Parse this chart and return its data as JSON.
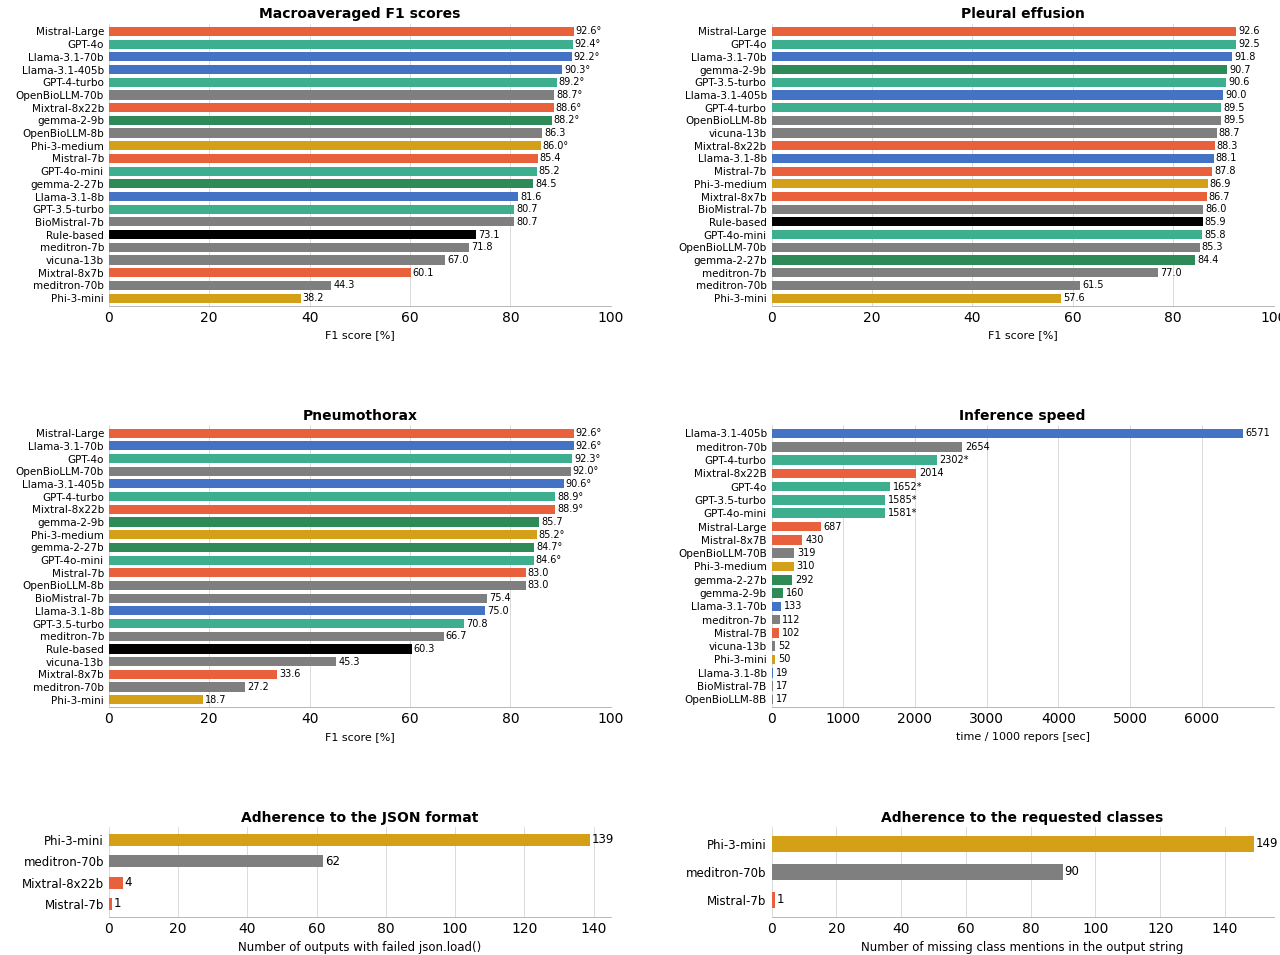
{
  "macro_f1": {
    "title": "Macroaveraged F1 scores",
    "xlabel": "F1 score [%]",
    "xlim": [
      0,
      100
    ],
    "labels": [
      "Mistral-Large",
      "GPT-4o",
      "Llama-3.1-70b",
      "Llama-3.1-405b",
      "GPT-4-turbo",
      "OpenBioLLM-70b",
      "Mixtral-8x22b",
      "gemma-2-9b",
      "OpenBioLLM-8b",
      "Phi-3-medium",
      "Mistral-7b",
      "GPT-4o-mini",
      "gemma-2-27b",
      "Llama-3.1-8b",
      "GPT-3.5-turbo",
      "BioMistral-7b",
      "Rule-based",
      "meditron-7b",
      "vicuna-13b",
      "Mixtral-8x7b",
      "meditron-70b",
      "Phi-3-mini"
    ],
    "values": [
      92.6,
      92.4,
      92.2,
      90.3,
      89.2,
      88.7,
      88.6,
      88.2,
      86.3,
      86.0,
      85.4,
      85.2,
      84.5,
      81.6,
      80.7,
      80.7,
      73.1,
      71.8,
      67.0,
      60.1,
      44.3,
      38.2
    ],
    "colors": [
      "#E8603C",
      "#3DAE8E",
      "#4472C4",
      "#4472C4",
      "#3DAE8E",
      "#7F7F7F",
      "#E8603C",
      "#2E8B57",
      "#7F7F7F",
      "#D4A017",
      "#E8603C",
      "#3DAE8E",
      "#2E8B57",
      "#4472C4",
      "#3DAE8E",
      "#7F7F7F",
      "#000000",
      "#7F7F7F",
      "#7F7F7F",
      "#E8603C",
      "#7F7F7F",
      "#D4A017"
    ],
    "annotations": [
      "92.6°",
      "92.4°",
      "92.2°",
      "90.3°",
      "89.2°",
      "88.7°",
      "88.6°",
      "88.2°",
      "86.3",
      "86.0°",
      "85.4",
      "85.2",
      "84.5",
      "81.6",
      "80.7",
      "80.7",
      "73.1",
      "71.8",
      "67.0",
      "60.1",
      "44.3",
      "38.2"
    ]
  },
  "pleural": {
    "title": "Pleural effusion",
    "xlabel": "F1 score [%]",
    "xlim": [
      0,
      100
    ],
    "labels": [
      "Mistral-Large",
      "GPT-4o",
      "Llama-3.1-70b",
      "gemma-2-9b",
      "GPT-3.5-turbo",
      "Llama-3.1-405b",
      "GPT-4-turbo",
      "OpenBioLLM-8b",
      "vicuna-13b",
      "Mixtral-8x22b",
      "Llama-3.1-8b",
      "Mistral-7b",
      "Phi-3-medium",
      "Mixtral-8x7b",
      "BioMistral-7b",
      "Rule-based",
      "GPT-4o-mini",
      "OpenBioLLM-70b",
      "gemma-2-27b",
      "meditron-7b",
      "meditron-70b",
      "Phi-3-mini"
    ],
    "values": [
      92.6,
      92.5,
      91.8,
      90.7,
      90.6,
      90.0,
      89.5,
      89.5,
      88.7,
      88.3,
      88.1,
      87.8,
      86.9,
      86.7,
      86.0,
      85.9,
      85.8,
      85.3,
      84.4,
      77.0,
      61.5,
      57.6
    ],
    "colors": [
      "#E8603C",
      "#3DAE8E",
      "#4472C4",
      "#2E8B57",
      "#3DAE8E",
      "#4472C4",
      "#3DAE8E",
      "#7F7F7F",
      "#7F7F7F",
      "#E8603C",
      "#4472C4",
      "#E8603C",
      "#D4A017",
      "#E8603C",
      "#7F7F7F",
      "#000000",
      "#3DAE8E",
      "#7F7F7F",
      "#2E8B57",
      "#7F7F7F",
      "#7F7F7F",
      "#D4A017"
    ],
    "annotations": [
      "92.6",
      "92.5",
      "91.8",
      "90.7",
      "90.6",
      "90.0",
      "89.5",
      "89.5",
      "88.7",
      "88.3",
      "88.1",
      "87.8",
      "86.9",
      "86.7",
      "86.0",
      "85.9",
      "85.8",
      "85.3",
      "84.4",
      "77.0",
      "61.5",
      "57.6"
    ]
  },
  "pneumo": {
    "title": "Pneumothorax",
    "xlabel": "F1 score [%]",
    "xlim": [
      0,
      100
    ],
    "labels": [
      "Mistral-Large",
      "Llama-3.1-70b",
      "GPT-4o",
      "OpenBioLLM-70b",
      "Llama-3.1-405b",
      "GPT-4-turbo",
      "Mixtral-8x22b",
      "gemma-2-9b",
      "Phi-3-medium",
      "gemma-2-27b",
      "GPT-4o-mini",
      "Mistral-7b",
      "OpenBioLLM-8b",
      "BioMistral-7b",
      "Llama-3.1-8b",
      "GPT-3.5-turbo",
      "meditron-7b",
      "Rule-based",
      "vicuna-13b",
      "Mixtral-8x7b",
      "meditron-70b",
      "Phi-3-mini"
    ],
    "values": [
      92.6,
      92.6,
      92.3,
      92.0,
      90.6,
      88.9,
      88.9,
      85.7,
      85.2,
      84.7,
      84.6,
      83.0,
      83.0,
      75.4,
      75.0,
      70.8,
      66.7,
      60.3,
      45.3,
      33.6,
      27.2,
      18.7
    ],
    "colors": [
      "#E8603C",
      "#4472C4",
      "#3DAE8E",
      "#7F7F7F",
      "#4472C4",
      "#3DAE8E",
      "#E8603C",
      "#2E8B57",
      "#D4A017",
      "#2E8B57",
      "#3DAE8E",
      "#E8603C",
      "#7F7F7F",
      "#7F7F7F",
      "#4472C4",
      "#3DAE8E",
      "#7F7F7F",
      "#000000",
      "#7F7F7F",
      "#E8603C",
      "#7F7F7F",
      "#D4A017"
    ],
    "annotations": [
      "92.6°",
      "92.6°",
      "92.3°",
      "92.0°",
      "90.6°",
      "88.9°",
      "88.9°",
      "85.7",
      "85.2°",
      "84.7°",
      "84.6°",
      "83.0",
      "83.0",
      "75.4",
      "75.0",
      "70.8",
      "66.7",
      "60.3",
      "45.3",
      "33.6",
      "27.2",
      "18.7"
    ]
  },
  "inference": {
    "title": "Inference speed",
    "xlabel": "time / 1000 repors [sec]",
    "xlim": [
      0,
      7000
    ],
    "xticks": [
      0,
      1000,
      2000,
      3000,
      4000,
      5000,
      6000
    ],
    "labels": [
      "Llama-3.1-405b",
      "meditron-70b",
      "GPT-4-turbo",
      "Mixtral-8x22B",
      "GPT-4o",
      "GPT-3.5-turbo",
      "GPT-4o-mini",
      "Mistral-Large",
      "Mistral-8x7B",
      "OpenBioLLM-70B",
      "Phi-3-medium",
      "gemma-2-27b",
      "gemma-2-9b",
      "Llama-3.1-70b",
      "meditron-7b",
      "Mistral-7B",
      "vicuna-13b",
      "Phi-3-mini",
      "Llama-3.1-8b",
      "BioMistral-7B",
      "OpenBioLLM-8B"
    ],
    "values": [
      6571,
      2654,
      2302,
      2014,
      1652,
      1585,
      1581,
      687,
      430,
      319,
      310,
      292,
      160,
      133,
      112,
      102,
      52,
      50,
      19,
      17,
      17
    ],
    "colors": [
      "#4472C4",
      "#7F7F7F",
      "#3DAE8E",
      "#E8603C",
      "#3DAE8E",
      "#3DAE8E",
      "#3DAE8E",
      "#E8603C",
      "#E8603C",
      "#7F7F7F",
      "#D4A017",
      "#2E8B57",
      "#2E8B57",
      "#4472C4",
      "#7F7F7F",
      "#E8603C",
      "#7F7F7F",
      "#D4A017",
      "#4472C4",
      "#7F7F7F",
      "#7F7F7F"
    ],
    "annotations": [
      "6571",
      "2654",
      "2302*",
      "2014",
      "1652*",
      "1585*",
      "1581*",
      "687",
      "430",
      "319",
      "310",
      "292",
      "160",
      "133",
      "112",
      "102",
      "52",
      "50",
      "19",
      "17",
      "17"
    ]
  },
  "json_format": {
    "title": "Adherence to the JSON format",
    "xlabel": "Number of outputs with failed json.load()",
    "xlim": [
      0,
      145
    ],
    "xticks": [
      0,
      20,
      40,
      60,
      80,
      100,
      120,
      140
    ],
    "labels": [
      "Phi-3-mini",
      "meditron-70b",
      "Mixtral-8x22b",
      "Mistral-7b"
    ],
    "values": [
      139,
      62,
      4,
      1
    ],
    "colors": [
      "#D4A017",
      "#7F7F7F",
      "#E8603C",
      "#E8603C"
    ],
    "annotations": [
      "139",
      "62",
      "4",
      "1"
    ]
  },
  "requested_classes": {
    "title": "Adherence to the requested classes",
    "xlabel": "Number of missing class mentions in the output string",
    "xlim": [
      0,
      155
    ],
    "xticks": [
      0,
      20,
      40,
      60,
      80,
      100,
      120,
      140
    ],
    "labels": [
      "Phi-3-mini",
      "meditron-70b",
      "Mistral-7b"
    ],
    "values": [
      149,
      90,
      1
    ],
    "colors": [
      "#D4A017",
      "#7F7F7F",
      "#E8603C"
    ],
    "annotations": [
      "149",
      "90",
      "1"
    ]
  }
}
